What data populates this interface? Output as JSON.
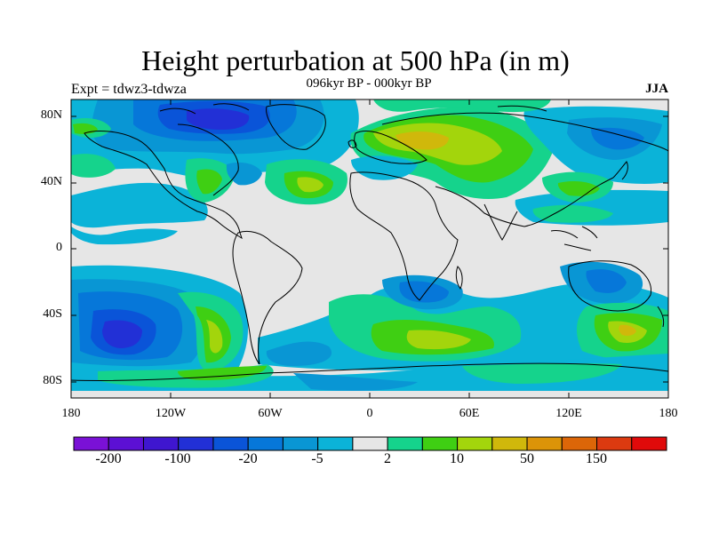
{
  "header": {
    "title": "Height perturbation at 500 hPa (in m)",
    "subtitle": "096kyr BP - 000kyr BP",
    "experiment": "Expt = tdwz3-tdwza",
    "season": "JJA"
  },
  "axes": {
    "lat_ticks": [
      "80N",
      "40N",
      "0",
      "40S",
      "80S"
    ],
    "lon_ticks": [
      "180",
      "120W",
      "60W",
      "0",
      "60E",
      "120E",
      "180"
    ]
  },
  "colorbar": {
    "colors": [
      "#7a11d6",
      "#5c10d4",
      "#3f16cf",
      "#2230d6",
      "#0a54d8",
      "#0677d9",
      "#0996d4",
      "#0bb3d8",
      "#e6e6e6",
      "#15d38c",
      "#3fcf13",
      "#a3d50c",
      "#d0b80b",
      "#dc9408",
      "#dc6608",
      "#dc3a10",
      "#e00a0a"
    ],
    "labels": [
      "-200",
      "-100",
      "-20",
      "-5",
      "2",
      "10",
      "50",
      "150"
    ]
  },
  "map": {
    "projection": "cylindrical-equidistant",
    "lon_range": [
      -180,
      180
    ],
    "lat_range": [
      -90,
      90
    ]
  }
}
